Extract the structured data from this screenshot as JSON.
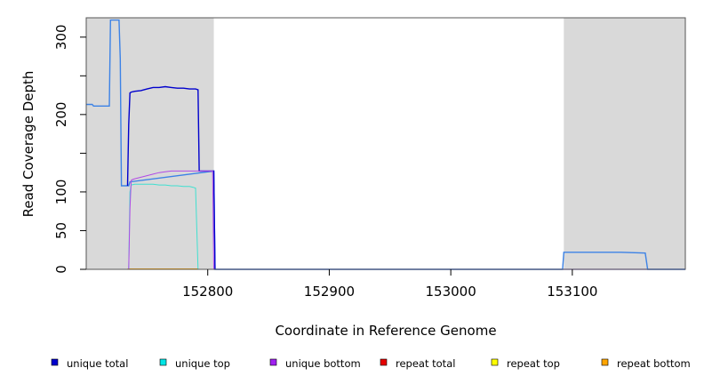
{
  "chart_data": {
    "type": "line",
    "title": "",
    "xlabel": "Coordinate in Reference Genome",
    "ylabel": "Read Coverage Depth",
    "xlim": [
      152700,
      153193
    ],
    "ylim": [
      0,
      325
    ],
    "x_ticks": [
      152800,
      152900,
      153000,
      153100
    ],
    "y_ticks": [
      0,
      50,
      100,
      150,
      200,
      250,
      300
    ],
    "y_tick_labels": [
      "0",
      "50",
      "100",
      "",
      "200",
      "",
      "300"
    ],
    "grid": false,
    "legend_position": "bottom",
    "shaded_regions": [
      {
        "from": 152700,
        "to": 152805
      },
      {
        "from": 153093,
        "to": 153193
      }
    ],
    "total_coverage": {
      "color": "#3c82e6",
      "x": [
        152700,
        152705,
        152706,
        152719,
        152720,
        152727,
        152728,
        152729,
        152730,
        152735,
        152736,
        152805,
        152806,
        153092,
        153093,
        153100,
        153140,
        153160,
        153162,
        153193
      ],
      "y": [
        213,
        213,
        211,
        211,
        322,
        322,
        272,
        108,
        108,
        108,
        113,
        127,
        0,
        0,
        22,
        22,
        22,
        21,
        0,
        0
      ]
    },
    "series": [
      {
        "name": "unique total",
        "color": "#0000cd",
        "x": [
          152734,
          152735,
          152736,
          152737,
          152740,
          152745,
          152750,
          152755,
          152760,
          152765,
          152770,
          152775,
          152780,
          152785,
          152790,
          152792,
          152793,
          152804,
          152805,
          152806
        ],
        "y": [
          108,
          187,
          228,
          229,
          230,
          231,
          233,
          235,
          235,
          236,
          235,
          234,
          234,
          233,
          233,
          232,
          127,
          127,
          127,
          0
        ]
      },
      {
        "name": "unique top",
        "color": "#40e0d0",
        "x": [
          152735,
          152736,
          152737,
          152740,
          152745,
          152750,
          152755,
          152760,
          152765,
          152770,
          152775,
          152780,
          152785,
          152788,
          152790,
          152792
        ],
        "y": [
          0,
          100,
          109,
          110,
          110,
          110,
          110,
          109,
          109,
          108,
          108,
          107,
          107,
          106,
          105,
          0
        ]
      },
      {
        "name": "unique bottom",
        "color": "#b04ae6",
        "x": [
          152735,
          152736,
          152737,
          152738,
          152740,
          152745,
          152750,
          152755,
          152760,
          152765,
          152770,
          152775,
          152780,
          152785,
          152790,
          152793,
          152804,
          152805
        ],
        "y": [
          0,
          78,
          115,
          116,
          117,
          119,
          121,
          123,
          125,
          126,
          127,
          127,
          127,
          127,
          127,
          127,
          127,
          0
        ]
      },
      {
        "name": "repeat total",
        "color": "#e60000",
        "x": [],
        "y": []
      },
      {
        "name": "repeat top",
        "color": "#ffff00",
        "x": [],
        "y": []
      },
      {
        "name": "repeat bottom",
        "color": "#ffa500",
        "x": [],
        "y": []
      }
    ]
  },
  "legend": [
    {
      "label": "unique total",
      "color": "#0000cd"
    },
    {
      "label": "unique top",
      "color": "#00e5e5"
    },
    {
      "label": "unique bottom",
      "color": "#a020f0"
    },
    {
      "label": "repeat total",
      "color": "#e60000"
    },
    {
      "label": "repeat top",
      "color": "#ffff00"
    },
    {
      "label": "repeat bottom",
      "color": "#ffa500"
    }
  ]
}
